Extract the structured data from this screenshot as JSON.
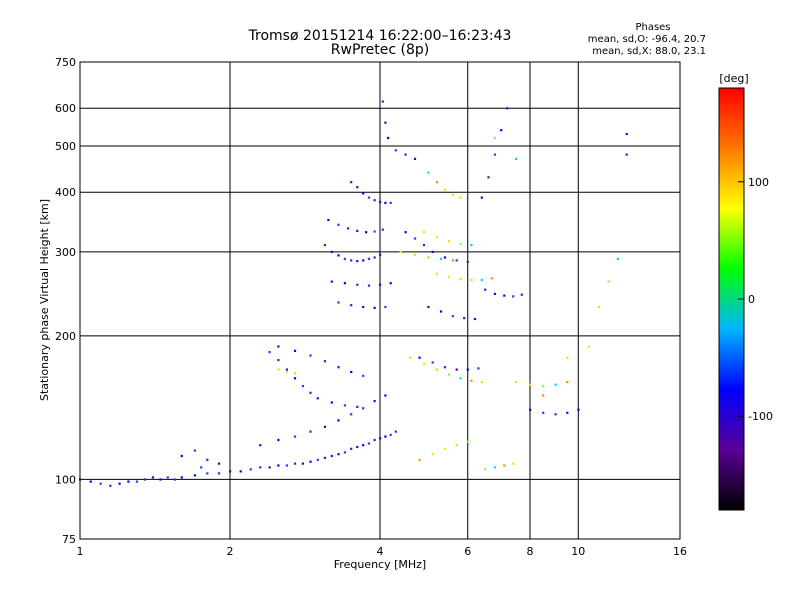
{
  "chart_data": {
    "type": "scatter",
    "title": "Tromsø 20151214 16:22:00–16:23:43",
    "subtitle": "RwPretec (8p)",
    "xlabel": "Frequency [MHz]",
    "ylabel": "Stationary phase Virtual Height [km]",
    "x_scale": "log",
    "y_scale": "log",
    "xlim": [
      1,
      16
    ],
    "ylim": [
      75,
      750
    ],
    "x_ticks": [
      1,
      2,
      4,
      6,
      8,
      10,
      16
    ],
    "y_ticks": [
      75,
      100,
      200,
      300,
      400,
      500,
      600,
      750
    ],
    "grid": true,
    "stats": {
      "heading": "Phases",
      "line_o": "mean, sd,O: -96.4, 20.7",
      "line_x": "mean, sd,X: 88.0, 23.1"
    },
    "colorbar": {
      "label": "[deg]",
      "range": [
        -180,
        180
      ],
      "ticks": [
        100,
        0,
        -100
      ],
      "colors": [
        "#000000",
        "#5a0096",
        "#0000ff",
        "#00b4ff",
        "#00ff00",
        "#ffff00",
        "#ff7800",
        "#ff0000"
      ]
    },
    "trace_colors": {
      "o_mode": [
        "#3a00c8",
        "#0000ff",
        "#1a40ff",
        "#5a10c0"
      ],
      "x_mode": [
        "#e6e600",
        "#c8ff00",
        "#ffd200",
        "#80ff40",
        "#00d8ff",
        "#ff8c00"
      ]
    },
    "series": [
      {
        "mode": "O",
        "points": [
          [
            1.0,
            100
          ],
          [
            1.05,
            99
          ],
          [
            1.1,
            98
          ],
          [
            1.15,
            97
          ],
          [
            1.2,
            98
          ],
          [
            1.25,
            99
          ],
          [
            1.3,
            99
          ],
          [
            1.35,
            100
          ],
          [
            1.4,
            101
          ],
          [
            1.45,
            100
          ],
          [
            1.5,
            101
          ],
          [
            1.55,
            100
          ],
          [
            1.6,
            101
          ],
          [
            1.7,
            102
          ],
          [
            1.8,
            103
          ],
          [
            1.9,
            103
          ],
          [
            2.0,
            104
          ],
          [
            2.1,
            104
          ],
          [
            2.2,
            105
          ],
          [
            2.3,
            106
          ],
          [
            2.4,
            106
          ],
          [
            2.5,
            107
          ],
          [
            2.6,
            107
          ],
          [
            2.7,
            108
          ],
          [
            2.8,
            108
          ],
          [
            2.9,
            109
          ],
          [
            3.0,
            110
          ],
          [
            3.1,
            111
          ],
          [
            3.2,
            112
          ],
          [
            3.3,
            113
          ],
          [
            3.4,
            114
          ],
          [
            3.5,
            116
          ],
          [
            3.6,
            117
          ],
          [
            3.7,
            118
          ],
          [
            3.8,
            119
          ],
          [
            3.9,
            121
          ],
          [
            4.0,
            122
          ],
          [
            4.1,
            123
          ],
          [
            4.2,
            124
          ],
          [
            4.3,
            126
          ],
          [
            2.3,
            118
          ],
          [
            2.5,
            121
          ],
          [
            2.7,
            123
          ],
          [
            2.9,
            126
          ],
          [
            3.1,
            129
          ],
          [
            3.3,
            133
          ],
          [
            3.5,
            137
          ],
          [
            3.7,
            141
          ],
          [
            3.9,
            146
          ],
          [
            4.1,
            150
          ],
          [
            2.4,
            185
          ],
          [
            2.5,
            178
          ],
          [
            2.6,
            170
          ],
          [
            2.7,
            163
          ],
          [
            2.8,
            157
          ],
          [
            2.9,
            152
          ],
          [
            3.0,
            148
          ],
          [
            3.2,
            145
          ],
          [
            3.4,
            143
          ],
          [
            3.6,
            142
          ],
          [
            2.5,
            190
          ],
          [
            2.7,
            186
          ],
          [
            2.9,
            182
          ],
          [
            3.1,
            177
          ],
          [
            3.3,
            172
          ],
          [
            3.5,
            168
          ],
          [
            3.7,
            165
          ],
          [
            3.1,
            310
          ],
          [
            3.2,
            300
          ],
          [
            3.3,
            295
          ],
          [
            3.4,
            290
          ],
          [
            3.5,
            288
          ],
          [
            3.6,
            287
          ],
          [
            3.7,
            288
          ],
          [
            3.8,
            290
          ],
          [
            3.9,
            292
          ],
          [
            4.0,
            296
          ],
          [
            3.15,
            350
          ],
          [
            3.3,
            342
          ],
          [
            3.45,
            336
          ],
          [
            3.6,
            332
          ],
          [
            3.75,
            330
          ],
          [
            3.9,
            331
          ],
          [
            4.05,
            334
          ],
          [
            3.2,
            260
          ],
          [
            3.4,
            258
          ],
          [
            3.6,
            256
          ],
          [
            3.8,
            255
          ],
          [
            4.0,
            256
          ],
          [
            4.2,
            258
          ],
          [
            3.3,
            235
          ],
          [
            3.5,
            232
          ],
          [
            3.7,
            230
          ],
          [
            3.9,
            229
          ],
          [
            4.1,
            230
          ],
          [
            3.5,
            420
          ],
          [
            3.6,
            410
          ],
          [
            3.7,
            398
          ],
          [
            3.8,
            390
          ],
          [
            3.9,
            385
          ],
          [
            4.0,
            382
          ],
          [
            4.1,
            380
          ],
          [
            4.2,
            380
          ],
          [
            4.05,
            620
          ],
          [
            4.1,
            560
          ],
          [
            4.15,
            520
          ],
          [
            4.3,
            490
          ],
          [
            4.5,
            480
          ],
          [
            4.7,
            470
          ],
          [
            4.5,
            330
          ],
          [
            4.7,
            320
          ],
          [
            4.9,
            310
          ],
          [
            5.1,
            300
          ],
          [
            5.4,
            292
          ],
          [
            5.7,
            288
          ],
          [
            6.0,
            286
          ],
          [
            5.0,
            230
          ],
          [
            5.3,
            225
          ],
          [
            5.6,
            220
          ],
          [
            5.9,
            218
          ],
          [
            6.2,
            217
          ],
          [
            4.8,
            180
          ],
          [
            5.1,
            176
          ],
          [
            5.4,
            172
          ],
          [
            5.7,
            170
          ],
          [
            6.0,
            170
          ],
          [
            6.3,
            171
          ],
          [
            6.5,
            250
          ],
          [
            6.8,
            245
          ],
          [
            7.1,
            243
          ],
          [
            7.4,
            242
          ],
          [
            7.7,
            244
          ],
          [
            7.2,
            600
          ],
          [
            7.0,
            540
          ],
          [
            6.8,
            480
          ],
          [
            6.6,
            430
          ],
          [
            6.4,
            390
          ],
          [
            8.0,
            140
          ],
          [
            8.5,
            138
          ],
          [
            9.0,
            137
          ],
          [
            9.5,
            138
          ],
          [
            10.0,
            140
          ],
          [
            1.7,
            115
          ],
          [
            1.8,
            110
          ],
          [
            1.9,
            108
          ],
          [
            1.6,
            112
          ],
          [
            1.75,
            106
          ],
          [
            12.5,
            480
          ],
          [
            12.5,
            530
          ]
        ]
      },
      {
        "mode": "X",
        "points": [
          [
            4.6,
            180
          ],
          [
            4.9,
            175
          ],
          [
            5.2,
            170
          ],
          [
            5.5,
            166
          ],
          [
            5.8,
            163
          ],
          [
            6.1,
            161
          ],
          [
            6.4,
            160
          ],
          [
            4.4,
            300
          ],
          [
            4.7,
            296
          ],
          [
            5.0,
            292
          ],
          [
            5.3,
            290
          ],
          [
            5.6,
            288
          ],
          [
            5.2,
            270
          ],
          [
            5.5,
            266
          ],
          [
            5.8,
            263
          ],
          [
            6.1,
            262
          ],
          [
            6.4,
            262
          ],
          [
            6.7,
            264
          ],
          [
            4.9,
            330
          ],
          [
            5.2,
            322
          ],
          [
            5.5,
            316
          ],
          [
            5.8,
            312
          ],
          [
            6.1,
            310
          ],
          [
            4.8,
            110
          ],
          [
            5.1,
            113
          ],
          [
            5.4,
            116
          ],
          [
            5.7,
            118
          ],
          [
            6.0,
            120
          ],
          [
            5.0,
            440
          ],
          [
            5.2,
            420
          ],
          [
            5.4,
            405
          ],
          [
            5.6,
            395
          ],
          [
            5.8,
            390
          ],
          [
            6.5,
            105
          ],
          [
            6.8,
            106
          ],
          [
            7.1,
            107
          ],
          [
            7.4,
            108
          ],
          [
            7.5,
            160
          ],
          [
            8.0,
            158
          ],
          [
            8.5,
            157
          ],
          [
            9.0,
            158
          ],
          [
            9.5,
            160
          ],
          [
            2.5,
            170
          ],
          [
            2.6,
            168
          ],
          [
            2.7,
            167
          ],
          [
            6.8,
            520
          ],
          [
            7.5,
            470
          ],
          [
            8.5,
            150
          ],
          [
            9.5,
            180
          ],
          [
            10.5,
            190
          ],
          [
            11.0,
            230
          ],
          [
            11.5,
            260
          ],
          [
            12.0,
            290
          ]
        ]
      }
    ]
  }
}
